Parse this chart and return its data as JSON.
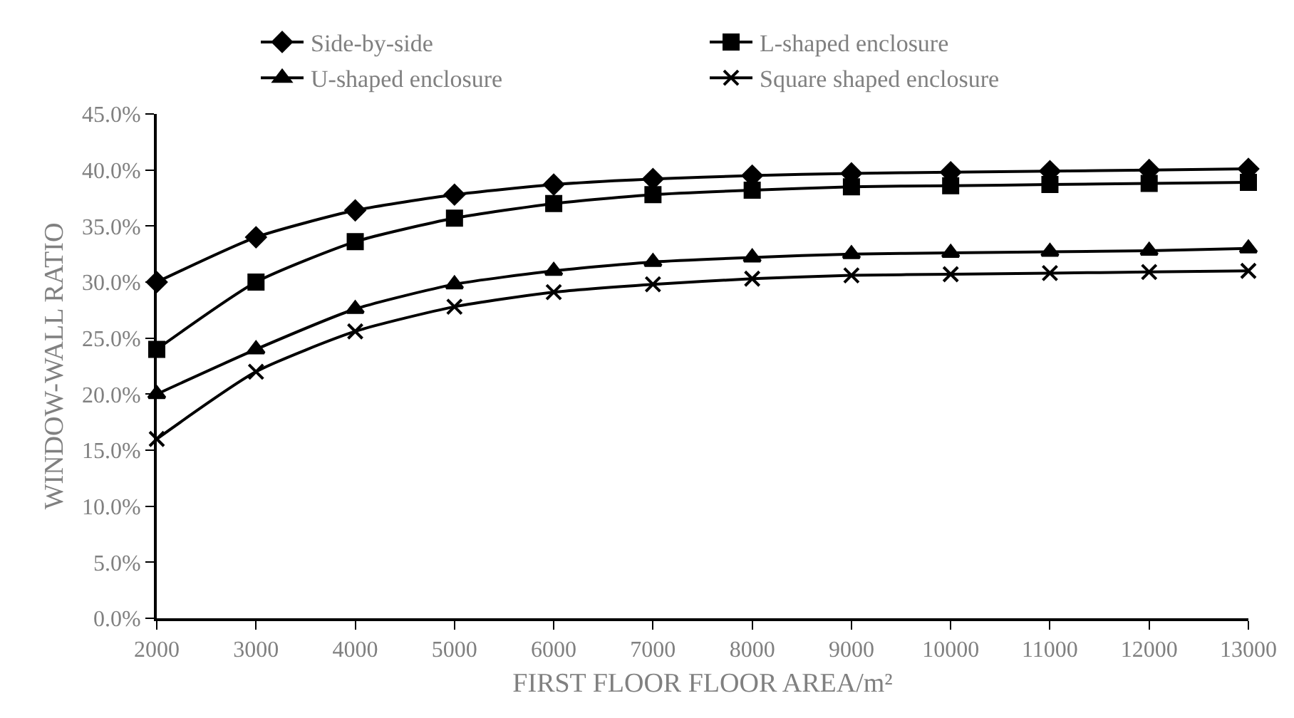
{
  "chart_data": {
    "type": "line",
    "xlabel": "FIRST FLOOR FLOOR AREA/m²",
    "ylabel": "WINDOW-WALL RATIO",
    "x": [
      2000,
      3000,
      4000,
      5000,
      6000,
      7000,
      8000,
      9000,
      10000,
      11000,
      12000,
      13000
    ],
    "xlim": [
      2000,
      13000
    ],
    "xticks": [
      2000,
      3000,
      4000,
      5000,
      6000,
      7000,
      8000,
      9000,
      10000,
      11000,
      12000,
      13000
    ],
    "ylim": [
      0,
      45
    ],
    "yticks": [
      {
        "value": 0,
        "label": "0.0%"
      },
      {
        "value": 5,
        "label": "5.0%"
      },
      {
        "value": 10,
        "label": "10.0%"
      },
      {
        "value": 15,
        "label": "15.0%"
      },
      {
        "value": 20,
        "label": "20.0%"
      },
      {
        "value": 25,
        "label": "25.0%"
      },
      {
        "value": 30,
        "label": "30.0%"
      },
      {
        "value": 35,
        "label": "35.0%"
      },
      {
        "value": 40,
        "label": "40.0%"
      },
      {
        "value": 45,
        "label": "45.0%"
      }
    ],
    "legend": "top",
    "line_style": "solid",
    "series": [
      {
        "name": "Side-by-side",
        "color": "#000000",
        "marker": "diamond",
        "values": [
          30.0,
          34.0,
          36.4,
          37.8,
          38.7,
          39.2,
          39.5,
          39.7,
          39.8,
          39.9,
          40.0,
          40.1
        ]
      },
      {
        "name": "L-shaped enclosure",
        "color": "#000000",
        "marker": "square",
        "values": [
          24.0,
          30.0,
          33.6,
          35.7,
          37.0,
          37.8,
          38.2,
          38.5,
          38.6,
          38.7,
          38.8,
          38.9
        ]
      },
      {
        "name": "U-shaped enclosure",
        "color": "#000000",
        "marker": "triangle",
        "values": [
          20.0,
          24.0,
          27.6,
          29.8,
          31.0,
          31.8,
          32.2,
          32.5,
          32.6,
          32.7,
          32.8,
          33.0
        ]
      },
      {
        "name": "Square shaped enclosure",
        "color": "#000000",
        "marker": "cross",
        "values": [
          16.0,
          22.0,
          25.6,
          27.8,
          29.1,
          29.8,
          30.3,
          30.6,
          30.7,
          30.8,
          30.9,
          31.0
        ]
      }
    ]
  }
}
